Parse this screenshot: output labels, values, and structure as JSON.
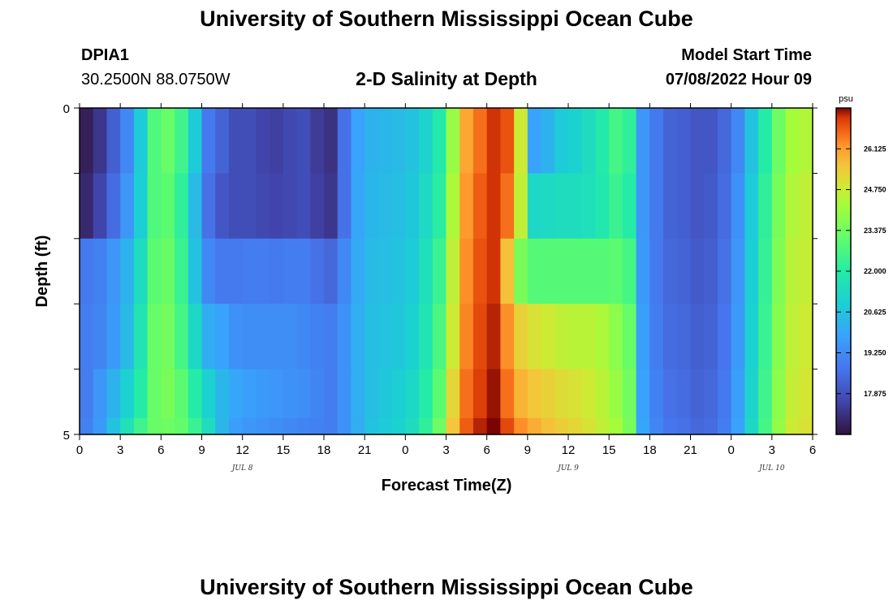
{
  "page": {
    "title": "University of Southern Mississippi Ocean Cube",
    "station": "DPIA1",
    "coords": "30.2500N  88.0750W",
    "model_start_label": "Model Start Time",
    "model_start_value": "07/08/2022 Hour 09",
    "footer_title": "University of Southern Mississippi Ocean Cube"
  },
  "chart_data": {
    "type": "heatmap",
    "title": "2-D Salinity at Depth",
    "xlabel": "Forecast Time(Z)",
    "ylabel": "Depth (ft)",
    "x_tick_labels": [
      "0",
      "3",
      "6",
      "9",
      "12",
      "15",
      "18",
      "21",
      "0",
      "3",
      "6",
      "9",
      "12",
      "15",
      "18",
      "21",
      "0",
      "3",
      "6"
    ],
    "x_tick_hours": [
      0,
      3,
      6,
      9,
      12,
      15,
      18,
      21,
      24,
      27,
      30,
      33,
      36,
      39,
      42,
      45,
      48,
      51,
      54
    ],
    "x_range_hours": [
      0,
      54
    ],
    "date_labels": [
      {
        "label": "JUL 8",
        "hour": 12
      },
      {
        "label": "JUL 9",
        "hour": 36
      },
      {
        "label": "JUL 10",
        "hour": 51
      }
    ],
    "y_tick_labels": [
      "0",
      "5"
    ],
    "y_range": [
      0,
      5
    ],
    "colorbar": {
      "unit": "psu",
      "range": [
        16.5,
        27.5
      ],
      "tick_values": [
        17.875,
        19.25,
        20.625,
        22.0,
        23.375,
        24.75,
        26.125
      ],
      "tick_labels": [
        "17.875",
        "19.250",
        "20.625",
        "22.000",
        "23.375",
        "24.750",
        "26.125"
      ]
    },
    "depth_levels_ft": [
      0.5,
      1.5,
      2.5,
      3.5,
      4.5,
      5.0
    ],
    "time_hours": [
      0,
      1,
      2,
      3,
      4,
      5,
      6,
      7,
      8,
      9,
      10,
      11,
      12,
      13,
      14,
      15,
      16,
      17,
      18,
      19,
      20,
      21,
      22,
      23,
      24,
      25,
      26,
      27,
      28,
      29,
      30,
      31,
      32,
      33,
      34,
      35,
      36,
      37,
      38,
      39,
      40,
      41,
      42,
      43,
      44,
      45,
      46,
      47,
      48,
      49,
      50,
      51,
      52,
      53,
      54
    ],
    "salinity": [
      [
        16.8,
        17.3,
        18.2,
        19.2,
        20.8,
        22.8,
        23.2,
        22.5,
        20.8,
        18.8,
        18.3,
        17.8,
        17.8,
        17.6,
        17.5,
        17.7,
        17.8,
        17.4,
        17.2,
        18.6,
        19.8,
        20.2,
        20.3,
        20.4,
        20.6,
        21.1,
        21.9,
        24.0,
        26.0,
        26.6,
        27.2,
        26.9,
        24.8,
        19.8,
        20.2,
        20.8,
        21.0,
        21.4,
        21.9,
        22.6,
        22.2,
        19.5,
        18.8,
        18.3,
        18.2,
        18.0,
        18.0,
        18.4,
        19.2,
        20.6,
        22.0,
        23.3,
        24.2,
        24.4,
        24.0
      ],
      [
        17.0,
        17.6,
        18.5,
        19.5,
        20.9,
        22.8,
        23.0,
        22.2,
        20.4,
        18.6,
        18.0,
        17.8,
        17.8,
        17.7,
        17.6,
        17.7,
        17.8,
        17.5,
        17.3,
        18.6,
        19.9,
        20.3,
        20.4,
        20.5,
        20.7,
        21.3,
        22.1,
        24.3,
        26.2,
        26.8,
        27.2,
        26.6,
        24.6,
        21.2,
        21.3,
        21.4,
        21.4,
        21.5,
        21.8,
        22.4,
        22.0,
        19.5,
        18.8,
        18.3,
        18.2,
        18.0,
        18.1,
        18.5,
        19.4,
        20.8,
        22.2,
        23.5,
        24.4,
        24.6,
        24.2
      ],
      [
        18.8,
        19.0,
        19.5,
        20.2,
        21.4,
        23.0,
        23.2,
        22.4,
        20.6,
        19.2,
        18.8,
        18.8,
        18.9,
        18.9,
        18.8,
        18.9,
        18.9,
        18.6,
        18.4,
        19.2,
        20.0,
        20.4,
        20.5,
        20.6,
        20.8,
        21.5,
        22.4,
        24.6,
        26.3,
        26.9,
        27.2,
        25.6,
        23.5,
        22.9,
        22.9,
        22.9,
        22.9,
        22.9,
        22.9,
        23.0,
        22.6,
        19.6,
        18.8,
        18.4,
        18.3,
        18.1,
        18.2,
        18.6,
        19.5,
        20.9,
        22.3,
        23.6,
        24.5,
        24.7,
        24.3
      ],
      [
        18.9,
        19.1,
        19.6,
        20.4,
        21.7,
        23.2,
        23.4,
        22.6,
        21.2,
        20.1,
        19.8,
        19.4,
        19.3,
        19.3,
        19.3,
        19.3,
        19.2,
        19.0,
        18.9,
        19.4,
        20.1,
        20.5,
        20.6,
        20.7,
        21.0,
        21.7,
        22.7,
        24.8,
        26.4,
        27.0,
        27.3,
        26.3,
        25.3,
        25.0,
        24.8,
        24.6,
        24.5,
        24.5,
        24.3,
        23.8,
        23.2,
        19.7,
        18.9,
        18.5,
        18.4,
        18.2,
        18.3,
        18.7,
        19.6,
        21.0,
        22.4,
        23.7,
        24.6,
        24.8,
        24.4
      ],
      [
        18.9,
        19.5,
        20.2,
        21.0,
        22.0,
        23.2,
        23.5,
        23.0,
        22.0,
        21.0,
        20.3,
        19.9,
        19.7,
        19.6,
        19.5,
        19.4,
        19.3,
        19.1,
        18.9,
        19.4,
        20.1,
        20.5,
        20.7,
        20.9,
        21.2,
        22.0,
        23.0,
        25.2,
        26.6,
        27.1,
        27.4,
        26.6,
        25.8,
        25.5,
        25.3,
        25.1,
        25.0,
        24.8,
        24.5,
        24.0,
        23.4,
        19.8,
        19.0,
        18.6,
        18.5,
        18.3,
        18.4,
        18.8,
        19.7,
        21.1,
        22.5,
        23.8,
        24.7,
        24.9,
        24.5
      ],
      [
        19.0,
        19.6,
        20.6,
        21.6,
        22.5,
        23.2,
        23.3,
        23.1,
        22.4,
        21.4,
        20.3,
        19.7,
        19.5,
        19.4,
        19.3,
        19.2,
        19.1,
        19.0,
        18.9,
        19.4,
        20.1,
        20.6,
        20.8,
        21.0,
        21.4,
        22.2,
        23.3,
        25.5,
        26.8,
        27.3,
        27.5,
        27.0,
        26.3,
        25.9,
        25.6,
        25.4,
        25.2,
        25.0,
        24.6,
        24.2,
        23.5,
        19.9,
        19.1,
        18.7,
        18.6,
        18.4,
        18.5,
        18.9,
        19.8,
        21.2,
        22.6,
        23.9,
        24.8,
        25.0,
        24.6
      ]
    ]
  }
}
